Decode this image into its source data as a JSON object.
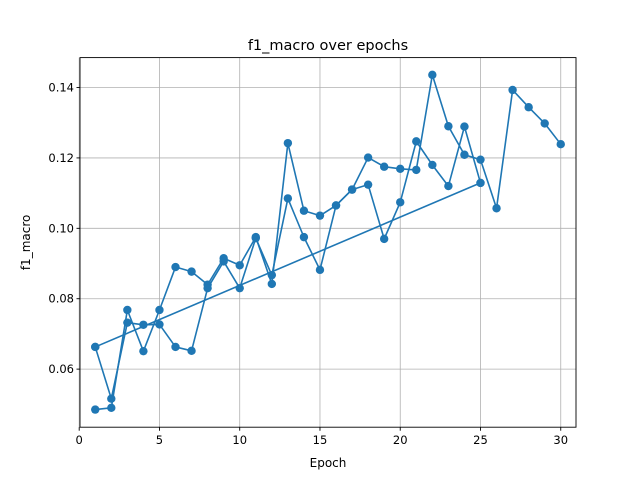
{
  "chart_data": {
    "type": "line",
    "title": "f1_macro over epochs",
    "xlabel": "Epoch",
    "ylabel": "f1_macro",
    "xlim": [
      0.05,
      30.95
    ],
    "ylim": [
      0.0435,
      0.1485
    ],
    "xticks": [
      0,
      5,
      10,
      15,
      20,
      25,
      30
    ],
    "xtick_labels": [
      "0",
      "5",
      "10",
      "15",
      "20",
      "25",
      "30"
    ],
    "yticks": [
      0.06,
      0.08,
      0.1,
      0.12,
      0.14
    ],
    "ytick_labels": [
      "0.06",
      "0.08",
      "0.10",
      "0.12",
      "0.14"
    ],
    "grid": true,
    "legend": "none",
    "color": "#1f77b4",
    "series": [
      {
        "x": [
          1,
          2,
          3,
          4,
          5,
          6,
          7,
          8,
          9,
          10,
          11,
          12,
          13,
          14,
          15,
          16,
          17,
          18,
          19,
          20,
          21,
          22,
          23,
          24,
          25
        ],
        "y": [
          0.0485,
          0.049,
          0.0768,
          0.0651,
          0.0768,
          0.089,
          0.0877,
          0.084,
          0.0915,
          0.0895,
          0.0975,
          0.0842,
          0.1242,
          0.105,
          0.1036,
          0.1065,
          0.111,
          0.1124,
          0.097,
          0.1074,
          0.1247,
          0.118,
          0.112,
          0.1289,
          0.1129
        ]
      },
      {
        "x": [
          1,
          2,
          3,
          4,
          5,
          6,
          7,
          8,
          9,
          10,
          11,
          12,
          13,
          14,
          15,
          16,
          17,
          18,
          19,
          20,
          21,
          22,
          23,
          24,
          25,
          26,
          27,
          28,
          29,
          30
        ],
        "y": [
          0.0663,
          0.0516,
          0.0732,
          0.0726,
          0.0727,
          0.0663,
          0.0652,
          0.083,
          0.0906,
          0.083,
          0.0972,
          0.0867,
          0.1085,
          0.0975,
          0.0882,
          0.1065,
          0.111,
          0.1201,
          0.1175,
          0.1169,
          0.1166,
          0.1436,
          0.129,
          0.1209,
          0.1195,
          0.1057,
          0.1393,
          0.1344,
          0.1298,
          0.1239
        ]
      },
      {
        "x": [
          1,
          25
        ],
        "y": [
          0.0663,
          0.1129
        ]
      }
    ]
  }
}
